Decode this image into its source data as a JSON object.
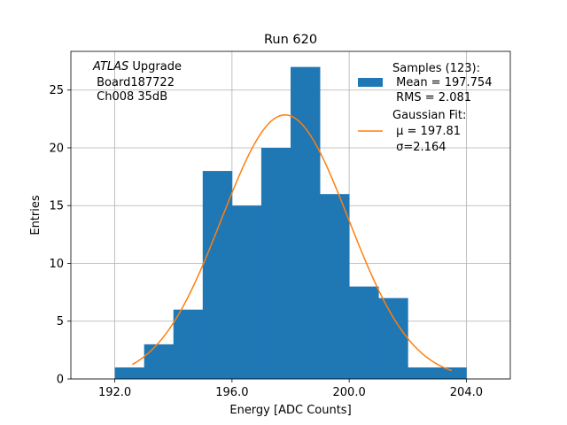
{
  "chart_data": {
    "type": "bar",
    "title": "Run 620",
    "xlabel": "Energy [ADC Counts]",
    "ylabel": "Entries",
    "xlim": [
      190.5,
      205.5
    ],
    "ylim": [
      0,
      28.35
    ],
    "xticks": [
      192.0,
      196.0,
      200.0,
      204.0
    ],
    "xtick_labels": [
      "192.0",
      "196.0",
      "200.0",
      "204.0"
    ],
    "yticks": [
      0,
      5,
      10,
      15,
      20,
      25
    ],
    "ytick_labels": [
      "0",
      "5",
      "10",
      "15",
      "20",
      "25"
    ],
    "grid": true,
    "bin_edges": [
      192,
      193,
      194,
      195,
      196,
      197,
      198,
      199,
      200,
      201,
      202,
      203,
      204
    ],
    "values": [
      1,
      3,
      6,
      18,
      15,
      20,
      27,
      16,
      8,
      7,
      1,
      1
    ],
    "bar_color": "#1f77b4",
    "fit": {
      "mu": 197.81,
      "sigma": 2.164,
      "peak": 22.85,
      "x_range": [
        192.6,
        203.5
      ],
      "color": "#ff7f0e"
    },
    "annotation": {
      "italic": "ATLAS",
      "first_line_rest": " Upgrade",
      "line2": " Board187722",
      "line3": " Ch008 35dB"
    },
    "legend": {
      "position": "upper right",
      "samples_lines": [
        "Samples (123):",
        " Mean = 197.754",
        " RMS = 2.081"
      ],
      "fit_lines": [
        "Gaussian Fit:",
        " μ = 197.81",
        " σ=2.164"
      ]
    }
  }
}
